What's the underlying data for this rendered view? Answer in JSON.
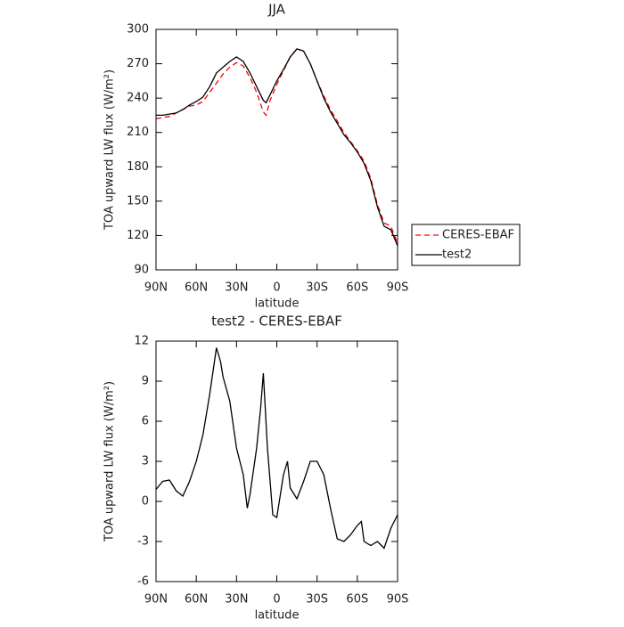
{
  "chart_data": [
    {
      "type": "line",
      "title": "JJA",
      "x_label": "latitude",
      "y_label": "TOA upward LW flux (W/m²)",
      "x": [
        90,
        85,
        80,
        75,
        70,
        65,
        60,
        55,
        50,
        45,
        40,
        35,
        30,
        25,
        20,
        15,
        10,
        8,
        5,
        0,
        -5,
        -10,
        -15,
        -20,
        -25,
        -30,
        -35,
        -40,
        -45,
        -50,
        -55,
        -60,
        -65,
        -70,
        -75,
        -80,
        -85,
        -90
      ],
      "xlim": [
        90,
        -90
      ],
      "xticks": [
        {
          "value": 90,
          "label": "90N"
        },
        {
          "value": 60,
          "label": "60N"
        },
        {
          "value": 30,
          "label": "30N"
        },
        0,
        {
          "value": -30,
          "label": "30S"
        },
        {
          "value": -60,
          "label": "60S"
        },
        {
          "value": -90,
          "label": "90S"
        }
      ],
      "ylim": [
        90,
        300
      ],
      "yticks": [
        90,
        120,
        150,
        180,
        210,
        240,
        270,
        300
      ],
      "legend": "right",
      "series": [
        {
          "name": "CERES-EBAF",
          "color": "#ff0000",
          "line_style": "dashed",
          "values": [
            222,
            223,
            224,
            227,
            230,
            233,
            234,
            237,
            245,
            253,
            261,
            267,
            271,
            268,
            258,
            245,
            228,
            225,
            238,
            252,
            264,
            276,
            283,
            281,
            270,
            255,
            242,
            230,
            220,
            210,
            202,
            194,
            185,
            170,
            147,
            131,
            128,
            113
          ]
        },
        {
          "name": "test2",
          "color": "#000000",
          "line_style": "solid",
          "values": [
            225,
            225,
            226,
            227,
            230,
            234,
            237,
            241,
            250,
            262,
            267,
            272,
            276,
            272,
            262,
            250,
            238,
            236,
            243,
            255,
            265,
            276,
            283,
            281,
            270,
            255,
            240,
            228,
            218,
            208,
            201,
            193,
            183,
            168,
            145,
            128,
            125,
            111
          ]
        }
      ]
    },
    {
      "type": "line",
      "title": "test2 - CERES-EBAF",
      "x_label": "latitude",
      "y_label": "TOA upward LW flux (W/m²)",
      "x": [
        90,
        85,
        80,
        75,
        70,
        65,
        60,
        55,
        50,
        45,
        42,
        40,
        35,
        30,
        25,
        22,
        20,
        15,
        12,
        10,
        7,
        3,
        0,
        -5,
        -8,
        -10,
        -15,
        -20,
        -25,
        -30,
        -35,
        -40,
        -45,
        -50,
        -55,
        -60,
        -63,
        -65,
        -70,
        -75,
        -80,
        -85,
        -90
      ],
      "xlim": [
        90,
        -90
      ],
      "xticks": [
        {
          "value": 90,
          "label": "90N"
        },
        {
          "value": 60,
          "label": "60N"
        },
        {
          "value": 30,
          "label": "30N"
        },
        0,
        {
          "value": -30,
          "label": "30S"
        },
        {
          "value": -60,
          "label": "60S"
        },
        {
          "value": -90,
          "label": "90S"
        }
      ],
      "ylim": [
        -6,
        12
      ],
      "yticks": [
        -6,
        -3,
        0,
        3,
        6,
        9,
        12
      ],
      "color": "#000000",
      "line_style": "solid",
      "values": [
        0.9,
        1.5,
        1.6,
        0.8,
        0.4,
        1.5,
        3,
        5,
        8,
        11.5,
        10.5,
        9.3,
        7.5,
        4,
        2,
        -0.5,
        0.5,
        4,
        7,
        9.6,
        4,
        -1,
        -1.2,
        2,
        3,
        1,
        0.2,
        1.5,
        3,
        3,
        2,
        -0.5,
        -2.8,
        -3,
        -2.5,
        -1.8,
        -1.5,
        -3,
        -3.3,
        -3,
        -3.5,
        -2,
        -1
      ]
    }
  ]
}
